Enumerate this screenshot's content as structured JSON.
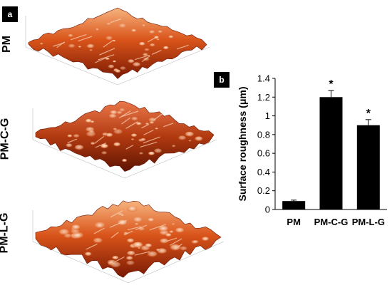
{
  "panels": {
    "a_label": "a",
    "b_label": "b",
    "samples": [
      "PM",
      "PM-C-G",
      "PM-L-G"
    ]
  },
  "colors": {
    "surface_dark": "#8a1f05",
    "surface_mid": "#d9541a",
    "surface_light": "#f5a06a",
    "surface_peak": "#fde8d6",
    "bar": "#000000"
  },
  "chart_data": {
    "type": "bar",
    "categories": [
      "PM",
      "PM-C-G",
      "PM-L-G"
    ],
    "values": [
      0.09,
      1.2,
      0.9
    ],
    "errors": [
      0.01,
      0.07,
      0.06
    ],
    "annotations": [
      "",
      "*",
      "*"
    ],
    "xlabel": "",
    "ylabel": "Surface roughness (μm)",
    "ylim": [
      0,
      1.4
    ],
    "yticks": [
      0,
      0.2,
      0.4,
      0.6,
      0.8,
      1,
      1.2,
      1.4
    ],
    "grid": false
  }
}
